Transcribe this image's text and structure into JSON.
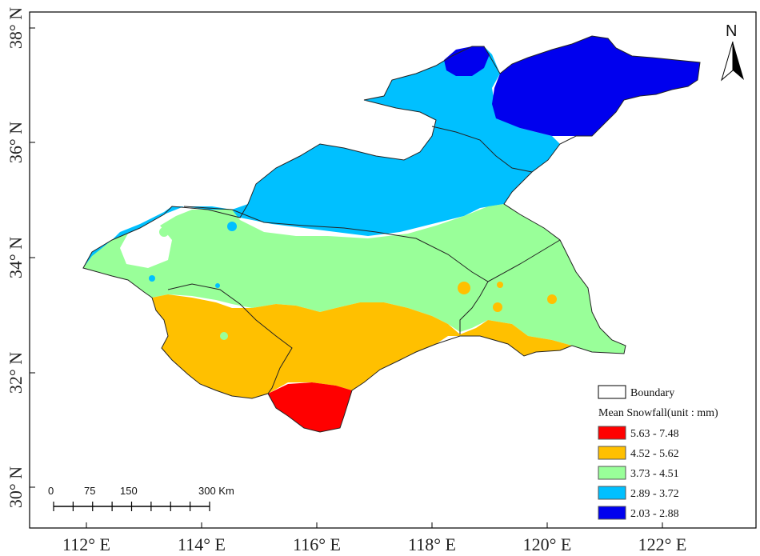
{
  "map": {
    "lon_ticks": [
      "112° E",
      "114° E",
      "116° E",
      "118° E",
      "120° E",
      "122° E"
    ],
    "lat_ticks": [
      "38° N",
      "36° N",
      "34° N",
      "32° N",
      "30° N"
    ],
    "lon_range": [
      111.0,
      124.0
    ],
    "lat_range": [
      29.3,
      38.4
    ]
  },
  "north_arrow": {
    "label": "N"
  },
  "scale_bar": {
    "ticks": [
      "0",
      "75",
      "150",
      "300 Km"
    ]
  },
  "legend": {
    "boundary_label": "Boundary",
    "title": "Mean Snowfall(unit : mm)",
    "classes": [
      {
        "label": "5.63 - 7.48",
        "color": "#ff0000"
      },
      {
        "label": "4.52 - 5.62",
        "color": "#ffc000"
      },
      {
        "label": "3.73 - 4.51",
        "color": "#99ff99"
      },
      {
        "label": "2.89 - 3.72",
        "color": "#00c0ff"
      },
      {
        "label": "2.03 - 2.88",
        "color": "#0000ee"
      }
    ]
  }
}
